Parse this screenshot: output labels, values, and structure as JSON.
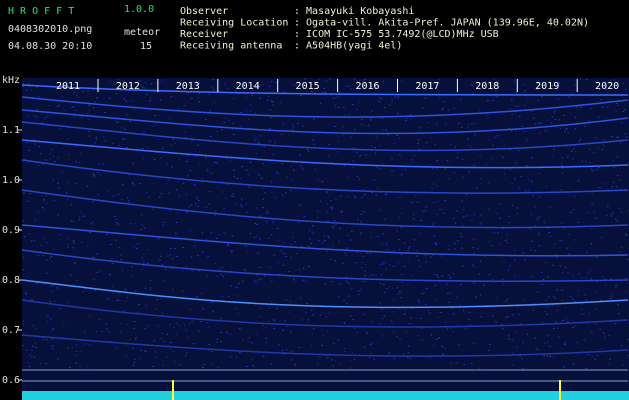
{
  "header": {
    "app_name": "H R O F F T",
    "version": "1.0.0",
    "filename": "0408302010.png",
    "timestamp": "04.08.30 20:10",
    "counter_label": "meteor",
    "counter_value": "15"
  },
  "info": [
    {
      "label": "Observer",
      "value": ": Masayuki Kobayashi"
    },
    {
      "label": "Receiving Location",
      "value": ": Ogata-vill. Akita-Pref. JAPAN (139.96E, 40.02N)"
    },
    {
      "label": "Receiver",
      "value": ": ICOM IC-575 53.7492(@LCD)MHz USB"
    },
    {
      "label": "Receiving antenna",
      "value": ": A504HB(yagi 4el)"
    }
  ],
  "spectrogram": {
    "unit": "kHz",
    "frequency_labels": [
      "1.1",
      "1.0",
      "0.9",
      "0.8",
      "0.7",
      "0.6"
    ],
    "time_labels": [
      "2011",
      "2012",
      "2013",
      "2014",
      "2015",
      "2016",
      "2017",
      "2018",
      "2019",
      "2020"
    ]
  }
}
